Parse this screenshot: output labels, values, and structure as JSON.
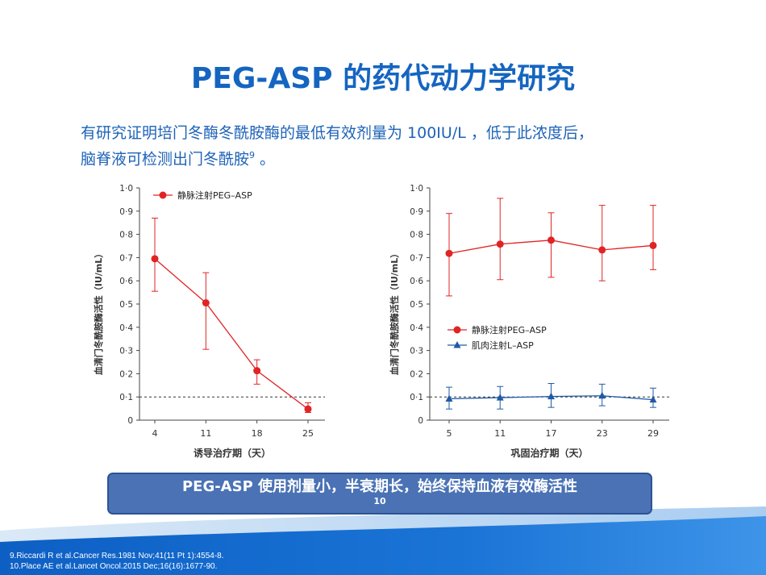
{
  "slide": {
    "title": "PEG-ASP 的药代动力学研究",
    "intro_line1": "有研究证明培门冬酶冬酰胺酶的最低有效剂量为 100IU/L ，低于此浓度后，",
    "intro_line2": "脑脊液可检测出门冬酰胺",
    "intro_sup": "9",
    "intro_end": " 。",
    "banner_text": "PEG-ASP 使用剂量小，半衰期长，始终保持血液有效酶活性",
    "banner_ref": "10",
    "references": [
      "9.Riccardi R et al.Cancer Res.1981 Nov;41(11 Pt 1):4554-8.",
      "10.Place AE et al.Lancet Oncol.2015 Dec;16(16):1677-90."
    ]
  },
  "colors": {
    "title": "#1565c0",
    "red_series": "#e02424",
    "blue_series": "#1f5aa6",
    "banner": "#4a72b5"
  },
  "chart_data": [
    {
      "type": "line",
      "xlabel": "诱导治疗期（天）",
      "ylabel": "血清门冬酰胺酶活性（IU/mL）",
      "ylim": [
        0,
        1.0
      ],
      "yticks": [
        "0",
        "0·1",
        "0·2",
        "0·3",
        "0·4",
        "0·5",
        "0·6",
        "0·7",
        "0·8",
        "0·9",
        "1·0"
      ],
      "categories": [
        "4",
        "11",
        "18",
        "25"
      ],
      "threshold": 0.1,
      "legend_position": "top-left",
      "series": [
        {
          "name": "静脉注射PEG–ASP",
          "color": "#e02424",
          "marker": "circle",
          "values": [
            0.695,
            0.505,
            0.213,
            0.048
          ],
          "err_low": [
            0.555,
            0.305,
            0.155,
            0.033
          ],
          "err_high": [
            0.87,
            0.635,
            0.26,
            0.075
          ]
        }
      ]
    },
    {
      "type": "line",
      "xlabel": "巩固治疗期（天）",
      "ylabel": "血清门冬酰胺酶活性（IU/mL）",
      "ylim": [
        0,
        1.0
      ],
      "yticks": [
        "0",
        "0·1",
        "0·2",
        "0·3",
        "0·4",
        "0·5",
        "0·6",
        "0·7",
        "0·8",
        "0·9",
        "1·0"
      ],
      "categories": [
        "5",
        "11",
        "17",
        "23",
        "29"
      ],
      "threshold": 0.1,
      "legend_position": "middle-left",
      "series": [
        {
          "name": "静脉注射PEG–ASP",
          "color": "#e02424",
          "marker": "circle",
          "values": [
            0.718,
            0.758,
            0.775,
            0.733,
            0.752
          ],
          "err_low": [
            0.535,
            0.605,
            0.615,
            0.6,
            0.648
          ],
          "err_high": [
            0.89,
            0.955,
            0.893,
            0.925,
            0.925
          ]
        },
        {
          "name": "肌肉注射L–ASP",
          "color": "#1f5aa6",
          "marker": "triangle",
          "values": [
            0.092,
            0.097,
            0.102,
            0.105,
            0.088
          ],
          "err_low": [
            0.048,
            0.048,
            0.055,
            0.062,
            0.055
          ],
          "err_high": [
            0.142,
            0.145,
            0.158,
            0.155,
            0.138
          ]
        }
      ]
    }
  ]
}
